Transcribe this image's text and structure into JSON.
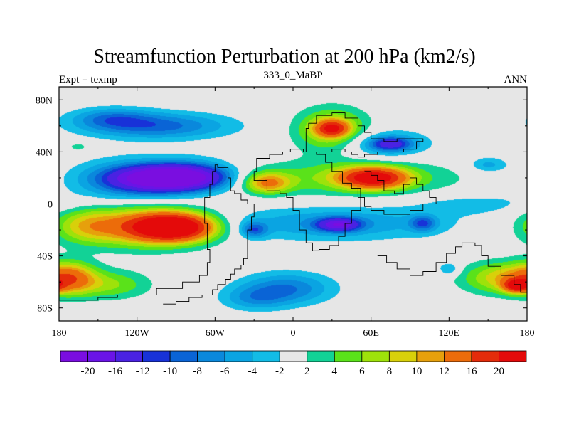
{
  "chart_data": {
    "type": "heatmap",
    "title": "Streamfunction Perturbation at 200 hPa (km2/s)",
    "subtitle_left": "Expt = texmp",
    "subtitle_center": "333_0_MaBP",
    "subtitle_right": "ANN",
    "x_range": [
      -180,
      180
    ],
    "y_range": [
      -90,
      90
    ],
    "x_ticks": [
      {
        "value": -180,
        "label": "180"
      },
      {
        "value": -120,
        "label": "120W"
      },
      {
        "value": -60,
        "label": "60W"
      },
      {
        "value": 0,
        "label": "0"
      },
      {
        "value": 60,
        "label": "60E"
      },
      {
        "value": 120,
        "label": "120E"
      },
      {
        "value": 180,
        "label": "180"
      }
    ],
    "y_ticks": [
      {
        "value": 80,
        "label": "80N"
      },
      {
        "value": 40,
        "label": "40N"
      },
      {
        "value": 0,
        "label": "0"
      },
      {
        "value": -40,
        "label": "40S"
      },
      {
        "value": -80,
        "label": "80S"
      }
    ],
    "contour_levels": [
      -20,
      -16,
      -12,
      -10,
      -8,
      -6,
      -4,
      -2,
      2,
      4,
      6,
      8,
      10,
      12,
      16,
      20
    ],
    "level_labels": [
      "-20",
      "-16",
      "-12",
      "-10",
      "-8",
      "-6",
      "-4",
      "-2",
      "2",
      "4",
      "6",
      "8",
      "10",
      "12",
      "16",
      "20"
    ],
    "colors": [
      "#7a0ee0",
      "#6a14e6",
      "#4a22e2",
      "#1832d8",
      "#0a64d6",
      "#0a88dc",
      "#0aa4e2",
      "#12bce6",
      "#e6e6e6",
      "#12d296",
      "#5ae21a",
      "#9ee20a",
      "#d8d00a",
      "#e6a00c",
      "#ec6c0a",
      "#e42c0a",
      "#e40a0a"
    ],
    "anomalies": [
      {
        "lon": -95,
        "lat": 20,
        "rx": 38,
        "ry": 9,
        "value": -22
      },
      {
        "lon": -120,
        "lat": 18,
        "rx": 45,
        "ry": 15,
        "value": -10
      },
      {
        "lon": -75,
        "lat": 22,
        "rx": 30,
        "ry": 12,
        "value": -6
      },
      {
        "lon": -105,
        "lat": 60,
        "rx": 55,
        "ry": 10,
        "value": -9
      },
      {
        "lon": -140,
        "lat": 66,
        "rx": 30,
        "ry": 8,
        "value": -6
      },
      {
        "lon": -165,
        "lat": 44,
        "rx": 10,
        "ry": 4,
        "value": 3
      },
      {
        "lon": -92,
        "lat": -18,
        "rx": 30,
        "ry": 10,
        "value": 24
      },
      {
        "lon": -115,
        "lat": -17,
        "rx": 50,
        "ry": 16,
        "value": 12
      },
      {
        "lon": -160,
        "lat": -17,
        "rx": 25,
        "ry": 13,
        "value": 6
      },
      {
        "lon": -172,
        "lat": -57,
        "rx": 20,
        "ry": 12,
        "value": 12
      },
      {
        "lon": -140,
        "lat": -62,
        "rx": 30,
        "ry": 11,
        "value": 6
      },
      {
        "lon": -5,
        "lat": -65,
        "rx": 35,
        "ry": 12,
        "value": -8
      },
      {
        "lon": -30,
        "lat": -73,
        "rx": 25,
        "ry": 9,
        "value": -5
      },
      {
        "lon": 30,
        "lat": -15,
        "rx": 90,
        "ry": 13,
        "value": -6
      },
      {
        "lon": 35,
        "lat": -16,
        "rx": 16,
        "ry": 5,
        "value": -15
      },
      {
        "lon": -30,
        "lat": -20,
        "rx": 10,
        "ry": 6,
        "value": -8
      },
      {
        "lon": 100,
        "lat": -15,
        "rx": 10,
        "ry": 6,
        "value": -8
      },
      {
        "lon": 30,
        "lat": 57,
        "rx": 27,
        "ry": 16,
        "value": 10
      },
      {
        "lon": 30,
        "lat": 58,
        "rx": 12,
        "ry": 6,
        "value": 14
      },
      {
        "lon": 45,
        "lat": 20,
        "rx": 80,
        "ry": 14,
        "value": 6
      },
      {
        "lon": 62,
        "lat": 20,
        "rx": 25,
        "ry": 8,
        "value": 20
      },
      {
        "lon": -20,
        "lat": 16,
        "rx": 18,
        "ry": 8,
        "value": 11
      },
      {
        "lon": 70,
        "lat": 46,
        "rx": 35,
        "ry": 11,
        "value": -6
      },
      {
        "lon": 75,
        "lat": 46,
        "rx": 15,
        "ry": 5,
        "value": -10
      },
      {
        "lon": 150,
        "lat": 30,
        "rx": 15,
        "ry": 6,
        "value": -5
      },
      {
        "lon": 160,
        "lat": -57,
        "rx": 30,
        "ry": 12,
        "value": 9
      },
      {
        "lon": 172,
        "lat": -63,
        "rx": 10,
        "ry": 5,
        "value": 16
      },
      {
        "lon": 120,
        "lat": -50,
        "rx": 8,
        "ry": 5,
        "value": -5
      },
      {
        "lon": 140,
        "lat": 0,
        "rx": 50,
        "ry": 8,
        "value": -3
      }
    ],
    "land_outlines": [
      [
        [
          -100,
          -77
        ],
        [
          -90,
          -75
        ],
        [
          -80,
          -72
        ],
        [
          -70,
          -70
        ],
        [
          -62,
          -66
        ],
        [
          -58,
          -62
        ],
        [
          -52,
          -58
        ],
        [
          -48,
          -54
        ],
        [
          -45,
          -50
        ],
        [
          -40,
          -47
        ],
        [
          -38,
          -42
        ],
        [
          -35,
          -30
        ],
        [
          -35,
          -20
        ],
        [
          -32,
          -10
        ],
        [
          -30,
          0
        ],
        [
          -35,
          3
        ],
        [
          -40,
          8
        ],
        [
          -45,
          10
        ],
        [
          -48,
          20
        ],
        [
          -50,
          28
        ],
        [
          -58,
          30
        ],
        [
          -60,
          25
        ],
        [
          -62,
          15
        ],
        [
          -64,
          5
        ],
        [
          -68,
          -5
        ],
        [
          -68,
          -15
        ],
        [
          -66,
          -25
        ],
        [
          -66,
          -35
        ],
        [
          -64,
          -45
        ],
        [
          -66,
          -55
        ],
        [
          -72,
          -60
        ],
        [
          -85,
          -65
        ],
        [
          -105,
          -70
        ],
        [
          -135,
          -72
        ],
        [
          -150,
          -74
        ],
        [
          -165,
          -74
        ],
        [
          -180,
          -75
        ]
      ],
      [
        [
          -10,
          10
        ],
        [
          -20,
          18
        ],
        [
          -30,
          25
        ],
        [
          -28,
          35
        ],
        [
          -18,
          38
        ],
        [
          -8,
          40
        ],
        [
          -2,
          42
        ],
        [
          8,
          40
        ],
        [
          18,
          38
        ],
        [
          25,
          32
        ],
        [
          30,
          25
        ],
        [
          38,
          16
        ],
        [
          45,
          12
        ],
        [
          50,
          12
        ],
        [
          52,
          -5
        ],
        [
          45,
          -15
        ],
        [
          40,
          -25
        ],
        [
          35,
          -32
        ],
        [
          28,
          -35
        ],
        [
          20,
          -36
        ],
        [
          15,
          -30
        ],
        [
          10,
          -20
        ],
        [
          5,
          -5
        ],
        [
          0,
          5
        ],
        [
          -5,
          8
        ],
        [
          -10,
          10
        ]
      ],
      [
        [
          8,
          40
        ],
        [
          10,
          48
        ],
        [
          10,
          58
        ],
        [
          12,
          62
        ],
        [
          18,
          68
        ],
        [
          30,
          70
        ],
        [
          40,
          66
        ],
        [
          50,
          60
        ],
        [
          55,
          55
        ],
        [
          60,
          50
        ],
        [
          70,
          48
        ],
        [
          80,
          50
        ],
        [
          90,
          50
        ],
        [
          100,
          48
        ],
        [
          95,
          42
        ],
        [
          85,
          40
        ],
        [
          75,
          40
        ],
        [
          65,
          38
        ],
        [
          55,
          36
        ],
        [
          50,
          38
        ],
        [
          45,
          40
        ],
        [
          40,
          42
        ],
        [
          30,
          40
        ],
        [
          20,
          38
        ]
      ],
      [
        [
          55,
          25
        ],
        [
          60,
          22
        ],
        [
          65,
          18
        ],
        [
          70,
          10
        ],
        [
          78,
          8
        ],
        [
          85,
          15
        ],
        [
          90,
          20
        ],
        [
          95,
          15
        ],
        [
          100,
          10
        ],
        [
          105,
          5
        ],
        [
          110,
          0
        ],
        [
          100,
          -5
        ],
        [
          90,
          -8
        ],
        [
          80,
          -8
        ],
        [
          70,
          -5
        ],
        [
          60,
          -2
        ],
        [
          55,
          5
        ],
        [
          50,
          12
        ]
      ],
      [
        [
          65,
          -40
        ],
        [
          72,
          -45
        ],
        [
          80,
          -50
        ],
        [
          90,
          -55
        ],
        [
          100,
          -52
        ],
        [
          110,
          -45
        ],
        [
          118,
          -38
        ],
        [
          125,
          -33
        ],
        [
          130,
          -30
        ],
        [
          140,
          -32
        ],
        [
          145,
          -40
        ],
        [
          150,
          -48
        ],
        [
          160,
          -55
        ],
        [
          170,
          -62
        ],
        [
          175,
          -68
        ],
        [
          180,
          -72
        ]
      ]
    ]
  }
}
